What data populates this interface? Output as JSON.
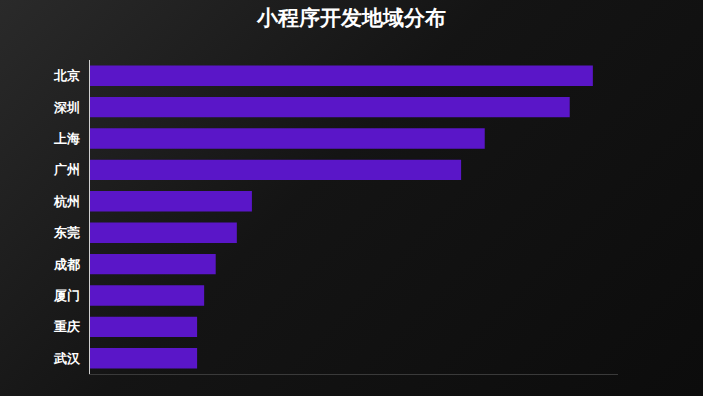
{
  "chart_data": {
    "type": "bar",
    "title": "小程序开发地域分布",
    "orientation": "horizontal",
    "categories": [
      "北京",
      "深圳",
      "上海",
      "广州",
      "杭州",
      "东莞",
      "成都",
      "厦门",
      "重庆",
      "武汉"
    ],
    "values": [
      100,
      95.4,
      78.5,
      73.8,
      32.2,
      29.2,
      25,
      22.7,
      21.3,
      21.3
    ],
    "color": "#5a16c8",
    "xlim": [
      0,
      105
    ],
    "xticks": [],
    "grid": false,
    "tick_labels": "y"
  }
}
